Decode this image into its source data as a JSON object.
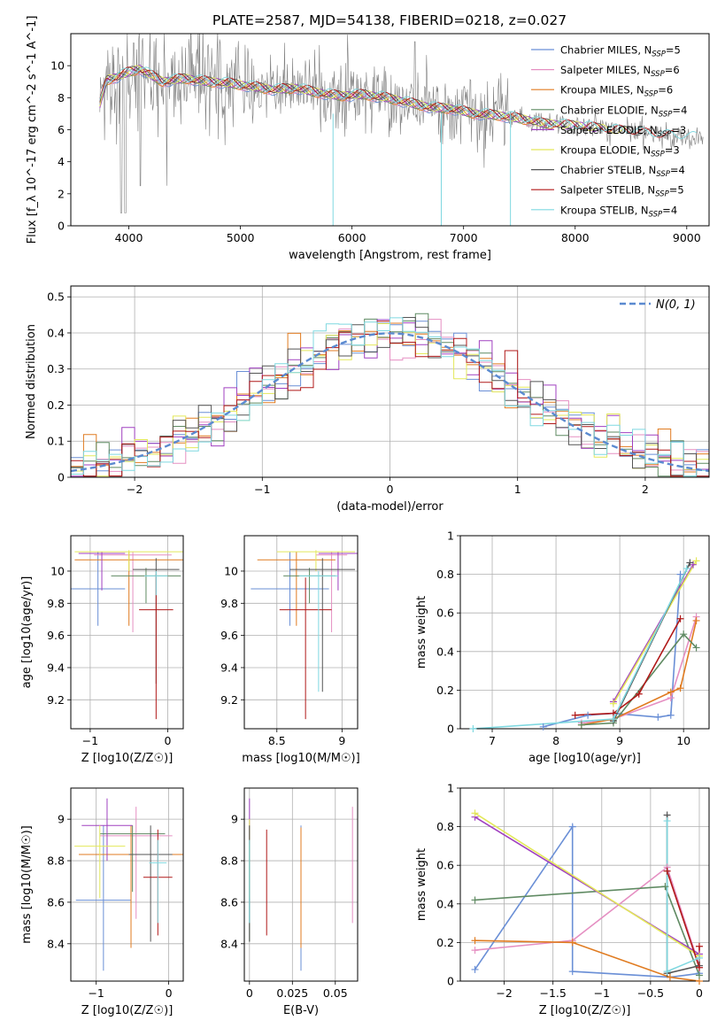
{
  "figure_title": "PLATE=2587, MJD=54138, FIBERID=0218, z=0.027",
  "colors": {
    "chabrier_miles": "#6a8fd6",
    "salpeter_miles": "#e58fc2",
    "kroupa_miles": "#e07b20",
    "chabrier_elodie": "#5f8a62",
    "salpeter_elodie": "#a040c0",
    "kroupa_elodie": "#e3e85a",
    "chabrier_stelib": "#555555",
    "salpeter_stelib": "#b01818",
    "kroupa_stelib": "#7fd8e0",
    "data": "#808080",
    "normal": "#5b8ad0"
  },
  "chart_data": [
    {
      "type": "line",
      "id": "spectrum",
      "title": "PLATE=2587, MJD=54138, FIBERID=0218, z=0.027",
      "xlabel": "wavelength [Angstrom, rest frame]",
      "ylabel": "Flux [f_λ 10^-17 erg cm^-2 s^-1 A^-1]",
      "xlim": [
        3480,
        9200
      ],
      "ylim": [
        0,
        12
      ],
      "xticks": [
        4000,
        5000,
        6000,
        7000,
        8000,
        9000
      ],
      "yticks": [
        0,
        2,
        4,
        6,
        8,
        10
      ],
      "grid": false,
      "legend_position": "top-right",
      "series": [
        {
          "name": "Chabrier MILES",
          "nssp": "5",
          "color_key": "chabrier_miles"
        },
        {
          "name": "Salpeter MILES",
          "nssp": "6",
          "color_key": "salpeter_miles"
        },
        {
          "name": "Kroupa MILES",
          "nssp": "6",
          "color_key": "kroupa_miles"
        },
        {
          "name": "Chabrier ELODIE",
          "nssp": "4",
          "color_key": "chabrier_elodie"
        },
        {
          "name": "Salpeter ELODIE",
          "nssp": "3",
          "color_key": "salpeter_elodie"
        },
        {
          "name": "Kroupa ELODIE",
          "nssp": "3",
          "color_key": "kroupa_elodie"
        },
        {
          "name": "Chabrier STELIB",
          "nssp": "4",
          "color_key": "chabrier_stelib"
        },
        {
          "name": "Salpeter STELIB",
          "nssp": "5",
          "color_key": "salpeter_stelib"
        },
        {
          "name": "Kroupa STELIB",
          "nssp": "4",
          "color_key": "kroupa_stelib"
        }
      ],
      "model_continuum": {
        "x": [
          3740,
          3800,
          3900,
          4000,
          4100,
          4200,
          4300,
          4500,
          4700,
          4900,
          5100,
          5300,
          5500,
          5700,
          5900,
          6100,
          6300,
          6500,
          6700,
          6900,
          7100,
          7300,
          7500,
          7700,
          7900,
          8100,
          8300,
          8500,
          8700,
          8900,
          9100
        ],
        "y": [
          7.6,
          9.1,
          9.3,
          9.6,
          9.8,
          9.4,
          9.0,
          9.2,
          9.0,
          8.9,
          8.7,
          8.5,
          8.6,
          8.3,
          8.1,
          8.2,
          8.0,
          7.7,
          7.4,
          7.3,
          7.0,
          6.9,
          6.7,
          6.4,
          6.3,
          6.2,
          6.0,
          5.9,
          5.7,
          5.6,
          5.5
        ]
      },
      "data_gap_wavelengths": [
        5830,
        6800,
        7420
      ]
    },
    {
      "type": "histogram",
      "id": "residuals",
      "xlabel": "(data-model)/error",
      "ylabel": "Normed distribution",
      "xlim": [
        -2.5,
        2.5
      ],
      "ylim": [
        0,
        0.53
      ],
      "xticks": [
        -2,
        -1,
        0,
        1,
        2
      ],
      "yticks": [
        0.0,
        0.1,
        0.2,
        0.3,
        0.4,
        0.5
      ],
      "grid": true,
      "legend_position": "top-right",
      "normal_label": "N(0, 1)",
      "bin_width": 0.1
    },
    {
      "type": "scatter",
      "id": "age_vs_z",
      "xlabel": "Z [log10(Z/Z☉)]",
      "ylabel": "age [log10(age/yr)]",
      "xlim": [
        -1.25,
        0.2
      ],
      "ylim": [
        9.02,
        10.22
      ],
      "xticks": [
        -1,
        0
      ],
      "yticks": [
        9.2,
        9.4,
        9.6,
        9.8,
        10.0
      ],
      "grid": true,
      "points": [
        {
          "key": "chabrier_miles",
          "x": -0.9,
          "xerr": 0.35,
          "y": 9.89,
          "ylo": 9.66,
          "yhi": 10.12
        },
        {
          "key": "salpeter_miles",
          "x": -0.45,
          "xerr": 0.5,
          "y": 10.1,
          "ylo": 9.62,
          "yhi": 10.12
        },
        {
          "key": "kroupa_miles",
          "x": -0.5,
          "xerr": 0.7,
          "y": 10.07,
          "ylo": 9.66,
          "yhi": 10.12
        },
        {
          "key": "chabrier_elodie",
          "x": -0.28,
          "xerr": 0.45,
          "y": 9.97,
          "ylo": 9.8,
          "yhi": 10.02
        },
        {
          "key": "salpeter_elodie",
          "x": -0.85,
          "xerr": 0.3,
          "y": 10.11,
          "ylo": 9.88,
          "yhi": 10.12
        },
        {
          "key": "kroupa_elodie",
          "x": -0.5,
          "xerr": 0.7,
          "y": 10.12,
          "ylo": 10.0,
          "yhi": 10.13
        },
        {
          "key": "chabrier_stelib",
          "x": -0.15,
          "xerr": 0.3,
          "y": 10.01,
          "ylo": 9.3,
          "yhi": 10.08
        },
        {
          "key": "salpeter_stelib",
          "x": -0.15,
          "xerr": 0.22,
          "y": 9.76,
          "ylo": 9.08,
          "yhi": 9.98
        },
        {
          "key": "kroupa_stelib",
          "x": -0.15,
          "xerr": 0.15,
          "y": 9.97,
          "ylo": 9.85,
          "yhi": 10.0
        }
      ]
    },
    {
      "type": "scatter",
      "id": "age_vs_mass",
      "xlabel": "mass [log10(M/M☉)]",
      "ylabel": "",
      "xlim": [
        8.25,
        9.12
      ],
      "ylim": [
        9.02,
        10.22
      ],
      "xticks": [
        8.5,
        9.0
      ],
      "yticks": [
        9.2,
        9.4,
        9.6,
        9.8,
        10.0
      ],
      "grid": true,
      "points": [
        {
          "key": "chabrier_miles",
          "x": 8.6,
          "xerr": 0.3,
          "y": 9.89,
          "ylo": 9.66,
          "yhi": 10.12
        },
        {
          "key": "salpeter_miles",
          "x": 8.92,
          "xerr": 0.12,
          "y": 10.1,
          "ylo": 9.62,
          "yhi": 10.12
        },
        {
          "key": "kroupa_miles",
          "x": 8.65,
          "xerr": 0.3,
          "y": 10.07,
          "ylo": 9.66,
          "yhi": 10.12
        },
        {
          "key": "chabrier_elodie",
          "x": 8.75,
          "xerr": 0.2,
          "y": 9.97,
          "ylo": 9.8,
          "yhi": 10.02
        },
        {
          "key": "salpeter_elodie",
          "x": 8.97,
          "xerr": 0.15,
          "y": 10.11,
          "ylo": 9.88,
          "yhi": 10.12
        },
        {
          "key": "kroupa_elodie",
          "x": 8.8,
          "xerr": 0.3,
          "y": 10.12,
          "ylo": 10.0,
          "yhi": 10.13
        },
        {
          "key": "chabrier_stelib",
          "x": 8.85,
          "xerr": 0.25,
          "y": 10.01,
          "ylo": 9.25,
          "yhi": 10.08
        },
        {
          "key": "salpeter_stelib",
          "x": 8.72,
          "xerr": 0.2,
          "y": 9.76,
          "ylo": 9.08,
          "yhi": 9.96
        },
        {
          "key": "kroupa_stelib",
          "x": 8.82,
          "xerr": 0.15,
          "y": 9.97,
          "ylo": 9.25,
          "yhi": 10.0
        }
      ]
    },
    {
      "type": "line",
      "id": "weight_vs_age",
      "xlabel": "age [log10(age/yr)]",
      "ylabel": "mass weight",
      "xlim": [
        6.5,
        10.4
      ],
      "ylim": [
        0,
        1.0
      ],
      "xticks": [
        7,
        8,
        9,
        10
      ],
      "yticks": [
        0.0,
        0.2,
        0.4,
        0.6,
        0.8,
        1.0
      ],
      "grid": true,
      "series": [
        {
          "key": "chabrier_miles",
          "x": [
            7.8,
            8.5,
            8.9,
            9.6,
            9.8,
            9.95
          ],
          "y": [
            0.01,
            0.07,
            0.08,
            0.06,
            0.07,
            0.8
          ]
        },
        {
          "key": "salpeter_miles",
          "x": [
            8.4,
            8.9,
            9.8,
            10.2
          ],
          "y": [
            0.03,
            0.05,
            0.16,
            0.58
          ]
        },
        {
          "key": "kroupa_miles",
          "x": [
            8.4,
            8.9,
            9.8,
            9.95,
            10.2
          ],
          "y": [
            0.02,
            0.05,
            0.19,
            0.21,
            0.56
          ]
        },
        {
          "key": "chabrier_elodie",
          "x": [
            8.4,
            8.9,
            10.0,
            10.2
          ],
          "y": [
            0.02,
            0.03,
            0.49,
            0.42
          ]
        },
        {
          "key": "salpeter_elodie",
          "x": [
            8.9,
            10.15
          ],
          "y": [
            0.14,
            0.85
          ]
        },
        {
          "key": "kroupa_elodie",
          "x": [
            8.9,
            10.2
          ],
          "y": [
            0.13,
            0.87
          ]
        },
        {
          "key": "chabrier_stelib",
          "x": [
            8.9,
            10.1
          ],
          "y": [
            0.04,
            0.86
          ]
        },
        {
          "key": "salpeter_stelib",
          "x": [
            8.3,
            8.9,
            9.3,
            9.95
          ],
          "y": [
            0.07,
            0.08,
            0.18,
            0.57
          ]
        },
        {
          "key": "kroupa_stelib",
          "x": [
            6.7,
            8.9,
            10.05
          ],
          "y": [
            0.0,
            0.05,
            0.83
          ]
        }
      ]
    },
    {
      "type": "scatter",
      "id": "mass_vs_z",
      "xlabel": "Z [log10(Z/Z☉)]",
      "ylabel": "mass [log10(M/M☉)]",
      "xlim": [
        -1.35,
        0.2
      ],
      "ylim": [
        8.22,
        9.15
      ],
      "xticks": [
        -1,
        0
      ],
      "yticks": [
        8.4,
        8.6,
        8.8,
        9.0
      ],
      "grid": true,
      "points": [
        {
          "key": "chabrier_miles",
          "x": -0.9,
          "xerr": 0.38,
          "y": 8.61,
          "ylo": 8.27,
          "yhi": 8.97
        },
        {
          "key": "salpeter_miles",
          "x": -0.45,
          "xerr": 0.5,
          "y": 8.92,
          "ylo": 8.52,
          "yhi": 9.06
        },
        {
          "key": "kroupa_miles",
          "x": -0.52,
          "xerr": 0.72,
          "y": 8.83,
          "ylo": 8.38,
          "yhi": 8.97
        },
        {
          "key": "chabrier_elodie",
          "x": -0.5,
          "xerr": 0.45,
          "y": 8.93,
          "ylo": 8.65,
          "yhi": 8.97
        },
        {
          "key": "salpeter_elodie",
          "x": -0.85,
          "xerr": 0.35,
          "y": 8.97,
          "ylo": 8.8,
          "yhi": 9.1
        },
        {
          "key": "kroupa_elodie",
          "x": -0.95,
          "xerr": 0.35,
          "y": 8.87,
          "ylo": 8.62,
          "yhi": 8.97
        },
        {
          "key": "chabrier_stelib",
          "x": -0.25,
          "xerr": 0.3,
          "y": 8.83,
          "ylo": 8.41,
          "yhi": 8.97
        },
        {
          "key": "salpeter_stelib",
          "x": -0.15,
          "xerr": 0.2,
          "y": 8.72,
          "ylo": 8.44,
          "yhi": 8.95
        },
        {
          "key": "kroupa_stelib",
          "x": -0.15,
          "xerr": 0.12,
          "y": 8.79,
          "ylo": 8.5,
          "yhi": 8.9
        }
      ]
    },
    {
      "type": "scatter",
      "id": "mass_vs_ebv",
      "xlabel": "E(B-V)",
      "ylabel": "",
      "xlim": [
        -0.003,
        0.063
      ],
      "ylim": [
        8.22,
        9.15
      ],
      "xticks": [
        0.0,
        0.025,
        0.05
      ],
      "yticks": [
        8.4,
        8.6,
        8.8,
        9.0
      ],
      "grid": true,
      "points": [
        {
          "key": "chabrier_miles",
          "x": 0.03,
          "ylo": 8.27,
          "yhi": 8.97
        },
        {
          "key": "salpeter_miles",
          "x": 0.06,
          "ylo": 8.5,
          "yhi": 9.06
        },
        {
          "key": "kroupa_miles",
          "x": 0.03,
          "ylo": 8.38,
          "yhi": 8.96
        },
        {
          "key": "chabrier_elodie",
          "x": 0.0,
          "ylo": 8.41,
          "yhi": 8.97
        },
        {
          "key": "salpeter_elodie",
          "x": 0.0,
          "ylo": 8.88,
          "yhi": 9.1
        },
        {
          "key": "kroupa_elodie",
          "x": 0.0,
          "ylo": 8.62,
          "yhi": 9.0
        },
        {
          "key": "chabrier_stelib",
          "x": 0.0,
          "ylo": 8.41,
          "yhi": 8.97
        },
        {
          "key": "salpeter_stelib",
          "x": 0.01,
          "ylo": 8.44,
          "yhi": 8.95
        },
        {
          "key": "kroupa_stelib",
          "x": 0.0,
          "ylo": 8.5,
          "yhi": 8.9
        }
      ]
    },
    {
      "type": "line",
      "id": "weight_vs_z",
      "xlabel": "Z [log10(Z/Z☉)]",
      "ylabel": "mass weight",
      "xlim": [
        -2.45,
        0.1
      ],
      "ylim": [
        0,
        1.0
      ],
      "xticks": [
        -2.0,
        -1.5,
        -1.0,
        -0.5,
        0.0
      ],
      "yticks": [
        0.0,
        0.2,
        0.4,
        0.6,
        0.8,
        1.0
      ],
      "grid": true,
      "series": [
        {
          "key": "chabrier_miles",
          "x": [
            -2.3,
            -1.3,
            -1.3,
            -0.3,
            0.0
          ],
          "y": [
            0.06,
            0.8,
            0.05,
            0.02,
            0.04
          ]
        },
        {
          "key": "salpeter_miles",
          "x": [
            -2.3,
            -1.3,
            -0.33,
            0.0
          ],
          "y": [
            0.16,
            0.21,
            0.59,
            0.08
          ]
        },
        {
          "key": "kroupa_miles",
          "x": [
            -2.3,
            -1.3,
            -0.3,
            0.0
          ],
          "y": [
            0.21,
            0.2,
            0.02,
            0.0
          ]
        },
        {
          "key": "chabrier_elodie",
          "x": [
            -2.3,
            -0.35,
            0.0
          ],
          "y": [
            0.42,
            0.49,
            0.03
          ]
        },
        {
          "key": "salpeter_elodie",
          "x": [
            -2.3,
            0.0
          ],
          "y": [
            0.85,
            0.14
          ]
        },
        {
          "key": "kroupa_elodie",
          "x": [
            -2.3,
            0.0
          ],
          "y": [
            0.87,
            0.13
          ]
        },
        {
          "key": "chabrier_stelib",
          "x": [
            -0.33,
            -0.33,
            0.0
          ],
          "y": [
            0.86,
            0.04,
            0.08
          ]
        },
        {
          "key": "salpeter_stelib",
          "x": [
            -0.33,
            0.0,
            0.0
          ],
          "y": [
            0.57,
            0.07,
            0.18
          ]
        },
        {
          "key": "kroupa_stelib",
          "x": [
            -0.33,
            -0.33,
            0.0
          ],
          "y": [
            0.83,
            0.05,
            0.12
          ]
        }
      ]
    }
  ]
}
